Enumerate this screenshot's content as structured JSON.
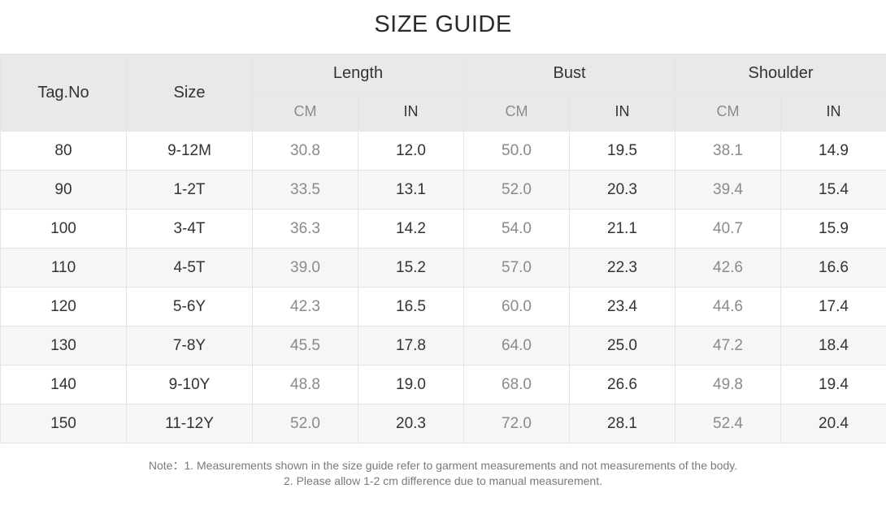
{
  "title": "SIZE GUIDE",
  "headers": {
    "tag_no": "Tag.No",
    "size": "Size",
    "groups": [
      "Length",
      "Bust",
      "Shoulder"
    ],
    "unit_cm": "CM",
    "unit_in": "IN"
  },
  "rows": [
    {
      "tag": "80",
      "size": "9-12M",
      "length_cm": "30.8",
      "length_in": "12.0",
      "bust_cm": "50.0",
      "bust_in": "19.5",
      "shoulder_cm": "38.1",
      "shoulder_in": "14.9"
    },
    {
      "tag": "90",
      "size": "1-2T",
      "length_cm": "33.5",
      "length_in": "13.1",
      "bust_cm": "52.0",
      "bust_in": "20.3",
      "shoulder_cm": "39.4",
      "shoulder_in": "15.4"
    },
    {
      "tag": "100",
      "size": "3-4T",
      "length_cm": "36.3",
      "length_in": "14.2",
      "bust_cm": "54.0",
      "bust_in": "21.1",
      "shoulder_cm": "40.7",
      "shoulder_in": "15.9"
    },
    {
      "tag": "110",
      "size": "4-5T",
      "length_cm": "39.0",
      "length_in": "15.2",
      "bust_cm": "57.0",
      "bust_in": "22.3",
      "shoulder_cm": "42.6",
      "shoulder_in": "16.6"
    },
    {
      "tag": "120",
      "size": "5-6Y",
      "length_cm": "42.3",
      "length_in": "16.5",
      "bust_cm": "60.0",
      "bust_in": "23.4",
      "shoulder_cm": "44.6",
      "shoulder_in": "17.4"
    },
    {
      "tag": "130",
      "size": "7-8Y",
      "length_cm": "45.5",
      "length_in": "17.8",
      "bust_cm": "64.0",
      "bust_in": "25.0",
      "shoulder_cm": "47.2",
      "shoulder_in": "18.4"
    },
    {
      "tag": "140",
      "size": "9-10Y",
      "length_cm": "48.8",
      "length_in": "19.0",
      "bust_cm": "68.0",
      "bust_in": "26.6",
      "shoulder_cm": "49.8",
      "shoulder_in": "19.4"
    },
    {
      "tag": "150",
      "size": "11-12Y",
      "length_cm": "52.0",
      "length_in": "20.3",
      "bust_cm": "72.0",
      "bust_in": "28.1",
      "shoulder_cm": "52.4",
      "shoulder_in": "20.4"
    }
  ],
  "notes": {
    "line1": "Note：1. Measurements shown in the size guide refer to garment measurements and not measurements of the body.",
    "line2": "2. Please allow 1-2 cm difference due to manual measurement."
  }
}
